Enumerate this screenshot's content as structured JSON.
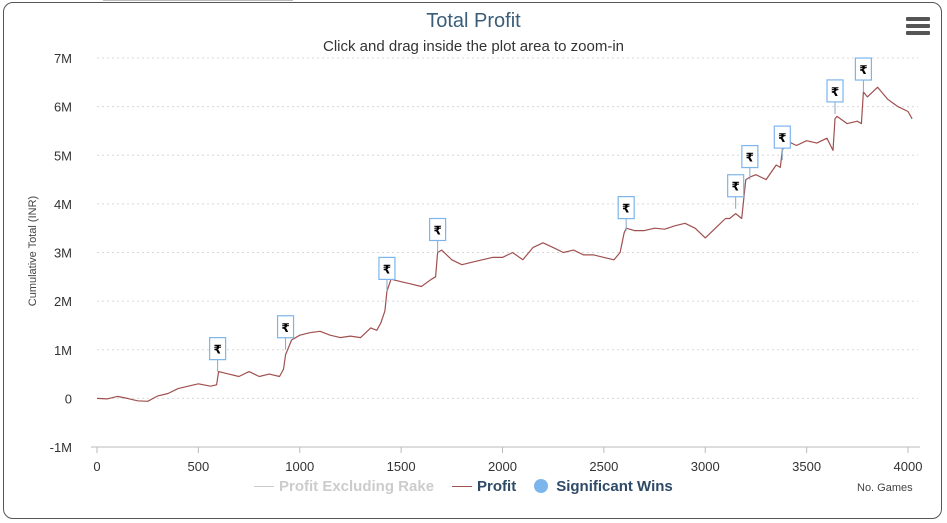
{
  "title": "Total Profit",
  "subtitle": "Click and drag inside the plot area to zoom-in",
  "menu_icon": "hamburger-menu-icon",
  "chart_data": {
    "type": "line",
    "title": "Total Profit",
    "subtitle": "Click and drag inside the plot area to zoom-in",
    "xlabel": "No. Games",
    "ylabel": "Cumulative Total (INR)",
    "xlim": [
      0,
      4000
    ],
    "ylim": [
      -1000000,
      7000000
    ],
    "xticks": [
      "0",
      "500",
      "1000",
      "1500",
      "2000",
      "2500",
      "3000",
      "3500",
      "4000"
    ],
    "yticks": [
      "-1M",
      "0",
      "1M",
      "2M",
      "3M",
      "4M",
      "5M",
      "6M",
      "7M"
    ],
    "grid": "horizontal dotted",
    "legend": "bottom-center",
    "series": [
      {
        "name": "Profit Excluding Rake",
        "color": "#cccccc",
        "visible": false,
        "x": [],
        "y": []
      },
      {
        "name": "Profit",
        "color": "#a0504f",
        "visible": true,
        "x": [
          0,
          50,
          100,
          150,
          200,
          250,
          300,
          350,
          400,
          450,
          500,
          560,
          590,
          600,
          650,
          700,
          750,
          800,
          850,
          900,
          920,
          930,
          960,
          1000,
          1050,
          1100,
          1150,
          1200,
          1250,
          1300,
          1350,
          1380,
          1400,
          1420,
          1430,
          1450,
          1500,
          1550,
          1600,
          1650,
          1670,
          1680,
          1700,
          1750,
          1800,
          1850,
          1900,
          1950,
          2000,
          2050,
          2100,
          2150,
          2200,
          2250,
          2300,
          2350,
          2400,
          2450,
          2500,
          2550,
          2580,
          2600,
          2610,
          2650,
          2700,
          2750,
          2800,
          2850,
          2900,
          2950,
          3000,
          3050,
          3100,
          3120,
          3150,
          3180,
          3200,
          3220,
          3250,
          3300,
          3350,
          3370,
          3380,
          3400,
          3450,
          3500,
          3550,
          3600,
          3630,
          3640,
          3650,
          3700,
          3750,
          3770,
          3780,
          3800,
          3850,
          3900,
          3950,
          4000,
          4020
        ],
        "y": [
          0,
          -10000,
          40000,
          0,
          -50000,
          -60000,
          50000,
          100000,
          200000,
          250000,
          300000,
          250000,
          280000,
          550000,
          500000,
          450000,
          550000,
          450000,
          500000,
          450000,
          600000,
          900000,
          1200000,
          1300000,
          1350000,
          1380000,
          1300000,
          1250000,
          1280000,
          1250000,
          1450000,
          1400000,
          1550000,
          1800000,
          2200000,
          2450000,
          2400000,
          2350000,
          2300000,
          2450000,
          2500000,
          3000000,
          3050000,
          2850000,
          2750000,
          2800000,
          2850000,
          2900000,
          2900000,
          3000000,
          2850000,
          3100000,
          3200000,
          3100000,
          3000000,
          3050000,
          2950000,
          2950000,
          2900000,
          2850000,
          3000000,
          3400000,
          3500000,
          3450000,
          3450000,
          3500000,
          3480000,
          3550000,
          3600000,
          3500000,
          3300000,
          3500000,
          3700000,
          3700000,
          3800000,
          3700000,
          4500000,
          4550000,
          4600000,
          4500000,
          4800000,
          4750000,
          5100000,
          5300000,
          5200000,
          5300000,
          5250000,
          5350000,
          5100000,
          5750000,
          5800000,
          5650000,
          5700000,
          5650000,
          6300000,
          6200000,
          6400000,
          6150000,
          6000000,
          5900000,
          5750000
        ]
      },
      {
        "name": "Significant Wins",
        "color": "#7cb5ec",
        "visible": true,
        "type": "flags",
        "flag_label": "₹",
        "x": [
          595,
          930,
          1430,
          1680,
          2610,
          3150,
          3220,
          3380,
          3640,
          3780
        ],
        "y": [
          550000,
          1000000,
          2200000,
          3000000,
          3450000,
          3900000,
          4500000,
          4900000,
          5850000,
          6300000
        ]
      }
    ]
  }
}
